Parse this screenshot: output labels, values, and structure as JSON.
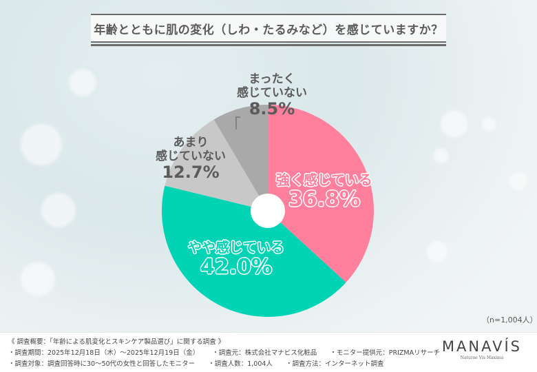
{
  "title": "年齢とともに肌の変化（しわ・たるみなど）を感じていますか？",
  "sample_note": "（n=1,004人）",
  "colors": {
    "strong": "#ff7f9c",
    "somewhat": "#00d4b4",
    "not_much": "#c8c8c8",
    "not_at_all": "#a9a9a9",
    "title_text": "#5a5a5a"
  },
  "labels": {
    "strong": {
      "name": "強く感じている",
      "pct": "36.8%"
    },
    "somewhat": {
      "name": "やや感じている",
      "pct": "42.0%"
    },
    "not_much": {
      "line1": "あまり",
      "line2": "感じていない",
      "pct": "12.7%"
    },
    "not_at_all": {
      "line1": "まったく",
      "line2": "感じていない",
      "pct": "8.5%"
    }
  },
  "footer": {
    "heading": "《 調査概要：「年齢による肌変化とスキンケア製品選び」に関する調査 》",
    "period": "・調査期間：2025年12月18日（木）～2025年12月19日（金）",
    "organizer": "・調査元：株式会社マナビス化粧品",
    "provider": "・モニター提供元：PRIZMAリサーチ",
    "target": "・調査対象：調査回答時に30～50代の女性と回答したモニター",
    "count": "・調査人数：1,004人",
    "method": "・調査方法：インターネット調査"
  },
  "logo": {
    "name": "MANAVÍS",
    "tagline": "Naturae Vis Maxima"
  },
  "chart_data": {
    "type": "pie",
    "title": "年齢とともに肌の変化（しわ・たるみなど）を感じていますか？",
    "categories": [
      "強く感じている",
      "やや感じている",
      "あまり感じていない",
      "まったく感じていない"
    ],
    "values": [
      36.8,
      42.0,
      12.7,
      8.5
    ],
    "unit": "%",
    "colors": [
      "#ff7f9c",
      "#00d4b4",
      "#c8c8c8",
      "#a9a9a9"
    ],
    "donut_hole": true,
    "start_angle": "12 o'clock, clockwise",
    "n": 1004,
    "legend": "none (inline labels)"
  }
}
